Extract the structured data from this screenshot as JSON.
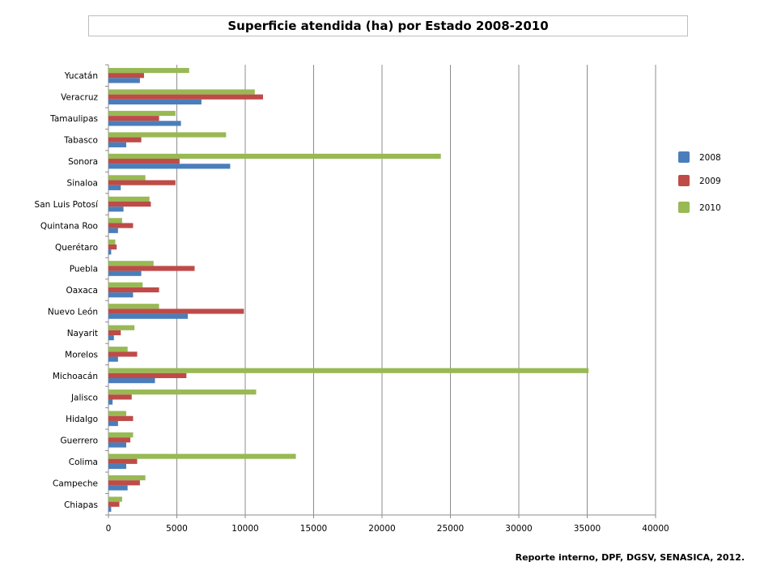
{
  "chart_data": {
    "type": "bar",
    "orientation": "horizontal",
    "title": "Superficie atendida (ha) por Estado 2008-2010",
    "xlabel": "",
    "ylabel": "",
    "xlim": [
      0,
      40000
    ],
    "x_ticks": [
      "0",
      "5000",
      "10000",
      "15000",
      "20000",
      "25000",
      "30000",
      "35000",
      "40000"
    ],
    "grid": "vertical",
    "legend_position": "right",
    "categories": [
      "Yucatán",
      "Veracruz",
      "Tamaulipas",
      "Tabasco",
      "Sonora",
      "Sinaloa",
      "San Luis Potosí",
      "Quintana Roo",
      "Querétaro",
      "Puebla",
      "Oaxaca",
      "Nuevo León",
      "Nayarit",
      "Morelos",
      "Michoacán",
      "Jalisco",
      "Hidalgo",
      "Guerrero",
      "Colima",
      "Campeche",
      "Chiapas"
    ],
    "series": [
      {
        "name": "2008",
        "color": "#4a7ebb",
        "values": [
          2300,
          6800,
          5300,
          1300,
          8900,
          900,
          1100,
          700,
          200,
          2400,
          1800,
          5800,
          400,
          700,
          3400,
          300,
          700,
          1300,
          1300,
          1400,
          200
        ]
      },
      {
        "name": "2009",
        "color": "#be4b48",
        "values": [
          2600,
          11300,
          3700,
          2400,
          5200,
          4900,
          3100,
          1800,
          600,
          6300,
          3700,
          9900,
          900,
          2100,
          5700,
          1700,
          1800,
          1600,
          2100,
          2300,
          800
        ]
      },
      {
        "name": "2010",
        "color": "#98b954",
        "values": [
          5900,
          10700,
          4900,
          8600,
          24300,
          2700,
          3000,
          1000,
          500,
          3300,
          2500,
          3700,
          1900,
          1400,
          35100,
          10800,
          1300,
          1800,
          13700,
          2700,
          1000
        ]
      }
    ]
  },
  "source_note": "Reporte interno, DPF, DGSV, SENASICA, 2012."
}
